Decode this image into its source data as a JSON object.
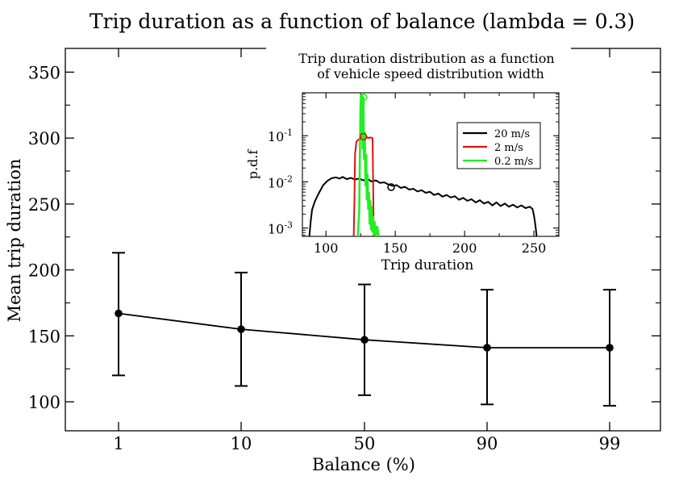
{
  "chart_data": [
    {
      "type": "line",
      "title": "Trip duration as a function of balance (lambda = 0.3)",
      "xlabel": "Balance (%)",
      "ylabel": "Mean trip duration",
      "categories": [
        "1",
        "10",
        "50",
        "90",
        "99"
      ],
      "ylim": [
        78,
        368
      ],
      "yticks": [
        100,
        150,
        200,
        250,
        300,
        350
      ],
      "grid": false,
      "series": [
        {
          "name": "mean trip duration",
          "color": "#000000",
          "values": [
            167,
            155,
            147,
            141,
            141
          ],
          "error_low": [
            120,
            112,
            105,
            98,
            97
          ],
          "error_high": [
            213,
            198,
            189,
            185,
            185
          ]
        }
      ]
    },
    {
      "type": "line",
      "title_line1": "Trip duration distribution as a function",
      "title_line2": "of vehicle speed distribution width",
      "xlabel": "Trip duration",
      "ylabel": "p.d.f",
      "x_scale": "linear",
      "y_scale": "log",
      "xlim": [
        83,
        268
      ],
      "ylim_log10": [
        -3.18,
        -0.07
      ],
      "xticks": [
        100,
        150,
        200,
        250
      ],
      "yticks": [
        {
          "value": -3,
          "base": "10",
          "exp": "-3"
        },
        {
          "value": -2,
          "base": "10",
          "exp": "-2"
        },
        {
          "value": -1,
          "base": "10",
          "exp": "-1"
        }
      ],
      "legend_position": "top-right",
      "series": [
        {
          "name": "20 m/s",
          "color": "#000000",
          "mean_marker": [
            147,
            0.0077
          ],
          "points": [
            [
              88,
              0.00066
            ],
            [
              89,
              0.0014
            ],
            [
              90,
              0.0025
            ],
            [
              92,
              0.0038
            ],
            [
              95,
              0.0058
            ],
            [
              98,
              0.0085
            ],
            [
              101,
              0.0105
            ],
            [
              104,
              0.012
            ],
            [
              107,
              0.0125
            ],
            [
              110,
              0.0118
            ],
            [
              112,
              0.0128
            ],
            [
              115,
              0.0115
            ],
            [
              118,
              0.0122
            ],
            [
              121,
              0.0112
            ],
            [
              124,
              0.0118
            ],
            [
              127,
              0.0108
            ],
            [
              130,
              0.0115
            ],
            [
              133,
              0.0102
            ],
            [
              136,
              0.0108
            ],
            [
              139,
              0.0095
            ],
            [
              142,
              0.0098
            ],
            [
              145,
              0.0088
            ],
            [
              148,
              0.0082
            ],
            [
              151,
              0.0085
            ],
            [
              154,
              0.0074
            ],
            [
              157,
              0.0078
            ],
            [
              160,
              0.0068
            ],
            [
              163,
              0.0071
            ],
            [
              166,
              0.0062
            ],
            [
              169,
              0.0066
            ],
            [
              172,
              0.0058
            ],
            [
              175,
              0.0061
            ],
            [
              178,
              0.0052
            ],
            [
              181,
              0.0056
            ],
            [
              184,
              0.0048
            ],
            [
              187,
              0.0052
            ],
            [
              190,
              0.0046
            ],
            [
              193,
              0.0049
            ],
            [
              196,
              0.0041
            ],
            [
              199,
              0.0045
            ],
            [
              202,
              0.0039
            ],
            [
              205,
              0.0042
            ],
            [
              208,
              0.0036
            ],
            [
              211,
              0.004
            ],
            [
              214,
              0.0034
            ],
            [
              217,
              0.0037
            ],
            [
              220,
              0.0031
            ],
            [
              223,
              0.0036
            ],
            [
              226,
              0.003
            ],
            [
              229,
              0.0034
            ],
            [
              232,
              0.0029
            ],
            [
              235,
              0.0032
            ],
            [
              238,
              0.0028
            ],
            [
              241,
              0.0031
            ],
            [
              244,
              0.0027
            ],
            [
              247,
              0.0029
            ],
            [
              249,
              0.0026
            ],
            [
              250,
              0.0019
            ],
            [
              251,
              0.0012
            ],
            [
              252,
              0.00066
            ]
          ]
        },
        {
          "name": "2 m/s",
          "color": "#e01010",
          "mean_marker": [
            127,
            0.095
          ],
          "points": [
            [
              120,
              0.00066
            ],
            [
              120.5,
              0.004
            ],
            [
              121,
              0.04
            ],
            [
              122,
              0.075
            ],
            [
              123,
              0.08
            ],
            [
              124,
              0.085
            ],
            [
              125,
              0.09
            ],
            [
              126,
              0.095
            ],
            [
              127,
              0.1
            ],
            [
              128,
              0.098
            ],
            [
              129,
              0.09
            ],
            [
              130,
              0.092
            ],
            [
              131,
              0.089
            ],
            [
              132,
              0.092
            ],
            [
              133,
              0.09
            ],
            [
              133.6,
              0.088
            ],
            [
              134,
              0.01
            ],
            [
              134.4,
              0.00066
            ]
          ]
        },
        {
          "name": "0.2 m/s",
          "color": "#22ee22",
          "mean_marker": [
            127,
            0.68
          ],
          "points": [
            [
              123,
              0.00066
            ],
            [
              124,
              0.0025
            ],
            [
              124.5,
              0.04
            ],
            [
              125,
              0.6
            ],
            [
              125.5,
              0.1
            ],
            [
              126,
              0.9
            ],
            [
              126.5,
              0.05
            ],
            [
              127,
              0.7
            ],
            [
              127.5,
              0.03
            ],
            [
              128,
              0.12
            ],
            [
              128.5,
              0.008
            ],
            [
              129,
              0.04
            ],
            [
              129.5,
              0.004
            ],
            [
              130,
              0.015
            ],
            [
              130.5,
              0.0025
            ],
            [
              131,
              0.006
            ],
            [
              131.5,
              0.0012
            ],
            [
              132,
              0.004
            ],
            [
              132.5,
              0.0009
            ],
            [
              133,
              0.003
            ],
            [
              133.5,
              0.0008
            ],
            [
              134,
              0.0018
            ],
            [
              134.5,
              0.0007
            ],
            [
              135,
              0.0014
            ],
            [
              136,
              0.00066
            ],
            [
              137,
              0.0011
            ],
            [
              138,
              0.00066
            ]
          ]
        }
      ]
    }
  ]
}
